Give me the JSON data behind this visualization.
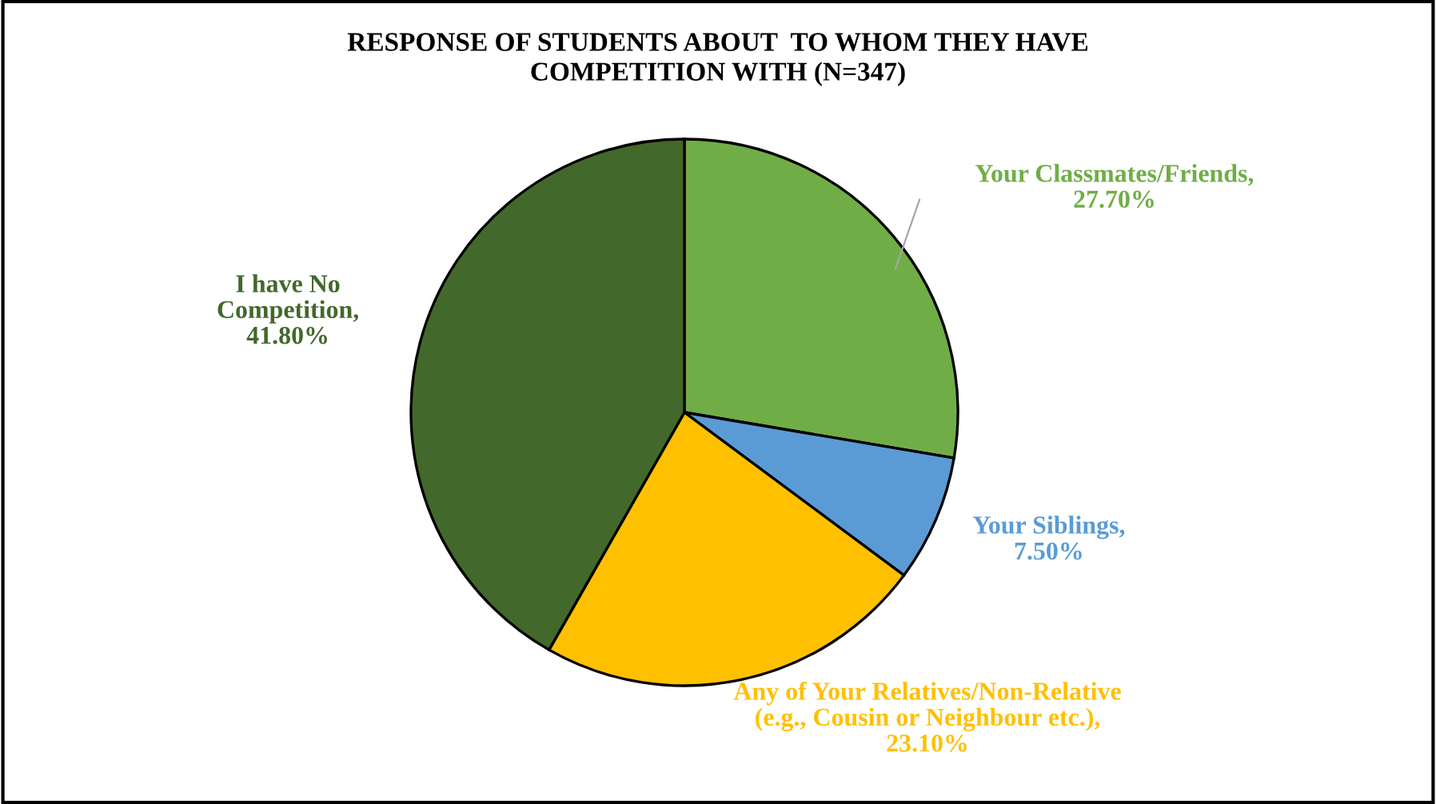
{
  "chart_data": {
    "type": "pie",
    "title": "RESPONSE OF STUDENTS ABOUT  TO WHOM THEY HAVE\nCOMPETITION WITH (N=347)",
    "categories": [
      "Your Classmates/Friends",
      "Your Siblings",
      "Any of Your Relatives/Non-Relative\n(e.g., Cousin or Neighbour etc.)",
      "I have No\nCompetition"
    ],
    "values": [
      27.7,
      7.5,
      23.1,
      41.8
    ],
    "value_labels": [
      ",\n27.70%",
      ",\n7.50%",
      ",\n23.10%",
      ",\n41.80%"
    ],
    "colors": [
      "#70ad47",
      "#5b9bd5",
      "#ffc000",
      "#43682b"
    ]
  }
}
